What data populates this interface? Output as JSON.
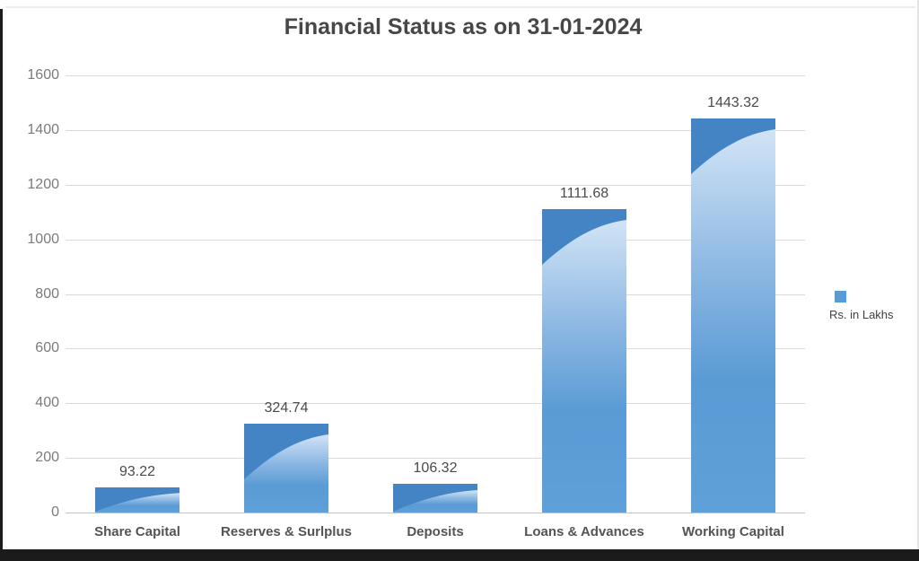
{
  "title": {
    "text": "Financial Status as on 31-01-2024",
    "color": "#474747"
  },
  "legend": {
    "label": "Rs. in Lakhs",
    "marker_color": "#5b9bd5",
    "position": "right"
  },
  "frame": {
    "border_dark": "#1b1b1b",
    "border_light": "#ededed",
    "background": "#ffffff"
  },
  "chart_data": {
    "type": "bar",
    "title": "Financial Status as on 31-01-2024",
    "categories": [
      "Share Capital",
      "Reserves & Surlplus",
      "Deposits",
      "Loans & Advances",
      "Working Capital"
    ],
    "values": [
      93.22,
      324.74,
      106.32,
      1111.68,
      1443.32
    ],
    "data_labels": [
      "93.22",
      "324.74",
      "106.32",
      "1111.68",
      "1443.32"
    ],
    "series_name": "Rs. in Lakhs",
    "xlabel": "",
    "ylabel": "",
    "ylim": [
      0,
      1600
    ],
    "ytick_step": 200,
    "ytick_labels": [
      "0",
      "200",
      "400",
      "600",
      "800",
      "1000",
      "1200",
      "1400",
      "1600"
    ],
    "grid": true,
    "legend_position": "right",
    "bar_color": "#5b9bd5",
    "bar_color_dark": "#4484c4",
    "bar_color_light": "#d2e4f6",
    "gridline_color": "#d9d9d9",
    "axis_label_color": "#7b7b7b",
    "data_label_color": "#4a4a4a",
    "category_label_color": "#545454"
  }
}
